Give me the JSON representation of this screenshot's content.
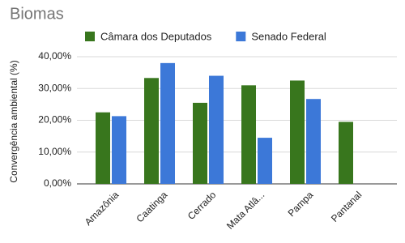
{
  "chart_data": {
    "type": "bar",
    "title": "Biomas",
    "y_label": "Convergência ambiental (%)",
    "categories": [
      "Amazônia",
      "Caatinga",
      "Cerrado",
      "Mata Atlâ...",
      "Pampa",
      "Pantanal"
    ],
    "series": [
      {
        "name": "Câmara dos Deputados",
        "color": "#38761d",
        "values": [
          22.5,
          33.3,
          25.5,
          31,
          32.5,
          19.5
        ]
      },
      {
        "name": "Senado Federal",
        "color": "#3c78d8",
        "values": [
          21.3,
          38,
          34,
          14.5,
          26.7,
          null
        ]
      }
    ],
    "ylim": [
      0,
      40
    ],
    "yticks": [
      {
        "value": 0,
        "label": "0,00%"
      },
      {
        "value": 10,
        "label": "10,00%"
      },
      {
        "value": 20,
        "label": "20,00%"
      },
      {
        "value": 30,
        "label": "30,00%"
      },
      {
        "value": 40,
        "label": "40,00%"
      }
    ],
    "grid": true,
    "legend": "top"
  }
}
